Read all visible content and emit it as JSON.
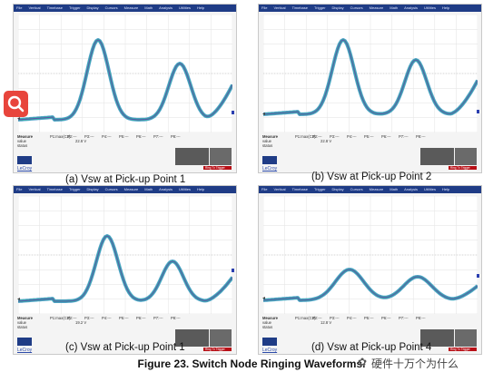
{
  "menu_items": [
    "File",
    "Vertical",
    "Timebase",
    "Trigger",
    "Display",
    "Cursors",
    "Measure",
    "Math",
    "Analysis",
    "Utilities",
    "Help"
  ],
  "measure_label": "Measure",
  "param_slots": [
    "P1:max(C3)",
    "P2:---",
    "P3:---",
    "P4:---",
    "P5:---",
    "P6:---",
    "P7:---",
    "P8:---"
  ],
  "row_labels": [
    "value",
    "status"
  ],
  "lecroy_label": "LeCroy",
  "trigger_tag": "Ring Tx Trigger",
  "panels": [
    {
      "caption": "(a)  Vsw at Pick-up Point 1",
      "meas_value": "22.8 V",
      "trace": "a"
    },
    {
      "caption": "(b)  Vsw at Pick-up Point 2",
      "meas_value": "22.8 V",
      "trace": "b"
    },
    {
      "caption": "(c)  Vsw at Pick-up Point 1",
      "meas_value": "19.2 V",
      "trace": "c"
    },
    {
      "caption": "(d)  Vsw at Pick-up Point 4",
      "meas_value": "12.8 V",
      "trace": "d"
    }
  ],
  "figure_caption": "Figure 23.   Switch Node Ringing Waveforms.",
  "watermark": "硬件十万个为什么",
  "colors": {
    "trace_outer": "#3a8fc8",
    "trace_mid": "#2bb39a",
    "trace_core": "#6a3fb0",
    "menubar": "#1f3c86",
    "badge": "#e8453c"
  },
  "icons": {
    "search": "search-icon",
    "watermark": "wechat-icon"
  }
}
